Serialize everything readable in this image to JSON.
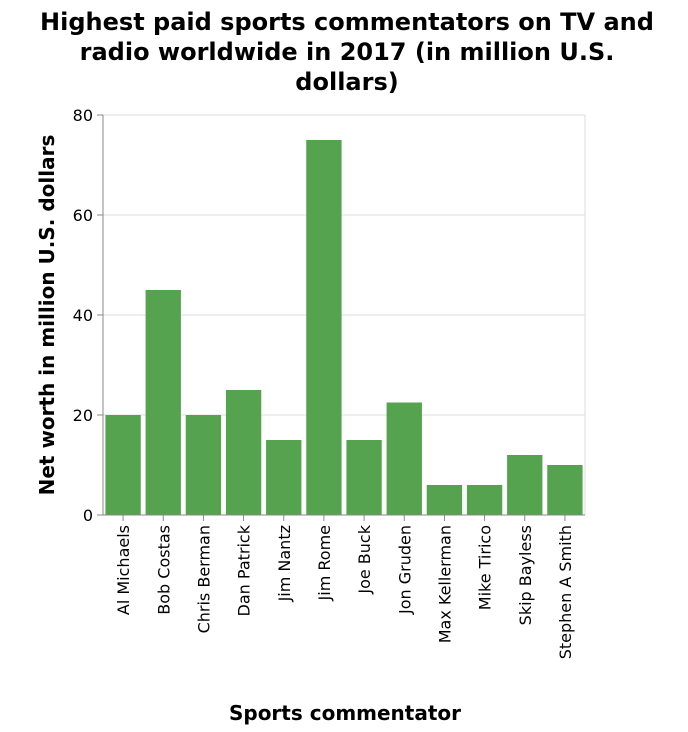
{
  "chart_data": {
    "type": "bar",
    "title_lines": [
      "Highest paid sports commentators on TV and",
      "radio worldwide in 2017 (in million U.S.",
      "dollars)"
    ],
    "xlabel": "Sports commentator",
    "ylabel": "Net worth in million U.S. dollars",
    "categories": [
      "Al Michaels",
      "Bob Costas",
      "Chris Berman",
      "Dan Patrick",
      "Jim Nantz",
      "Jim Rome",
      "Joe Buck",
      "Jon Gruden",
      "Max Kellerman",
      "Mike Tirico",
      "Skip Bayless",
      "Stephen A Smith"
    ],
    "values": [
      20,
      45,
      20,
      25,
      15,
      75,
      15,
      22.5,
      6,
      6,
      12,
      10
    ],
    "ylim": [
      0,
      80
    ],
    "yticks": [
      0,
      20,
      40,
      60,
      80
    ],
    "grid": true,
    "bar_color": "#55a34f"
  }
}
